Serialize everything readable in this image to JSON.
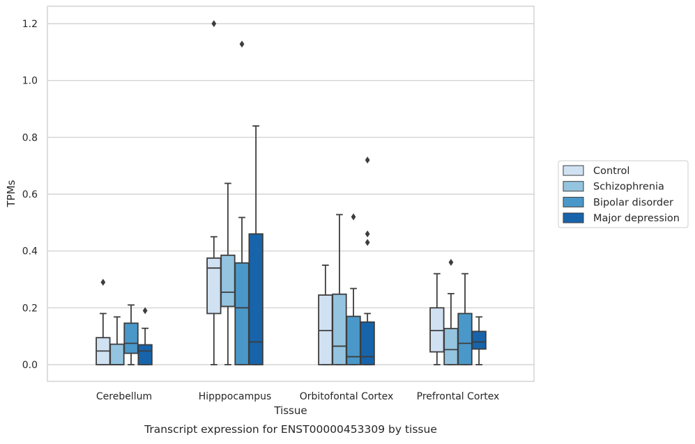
{
  "chart_data": {
    "type": "box",
    "title": "Transcript expression for ENST00000453309 by tissue",
    "xlabel": "Tissue",
    "ylabel": "TPMs",
    "ylim": [
      -0.06,
      1.26
    ],
    "yticks": [
      0.0,
      0.2,
      0.4,
      0.6,
      0.8,
      1.0,
      1.2
    ],
    "ytick_labels": [
      "0.0",
      "0.2",
      "0.4",
      "0.6",
      "0.8",
      "1.0",
      "1.2"
    ],
    "grid": true,
    "legend_placement": "right",
    "categories": [
      "Cerebellum",
      "Hipppocampus",
      "Orbitofontal Cortex",
      "Prefrontal Cortex"
    ],
    "series": [
      {
        "name": "Control",
        "color": "#d0e1f2",
        "boxes": [
          {
            "whislo": 0.0,
            "q1": 0.0,
            "med": 0.048,
            "q3": 0.095,
            "whishi": 0.18,
            "fliers": [
              0.29
            ]
          },
          {
            "whislo": 0.0,
            "q1": 0.18,
            "med": 0.34,
            "q3": 0.375,
            "whishi": 0.45,
            "fliers": [
              1.2
            ]
          },
          {
            "whislo": 0.0,
            "q1": 0.0,
            "med": 0.12,
            "q3": 0.245,
            "whishi": 0.35,
            "fliers": []
          },
          {
            "whislo": 0.0,
            "q1": 0.045,
            "med": 0.12,
            "q3": 0.2,
            "whishi": 0.32,
            "fliers": []
          }
        ]
      },
      {
        "name": "Schizophrenia",
        "color": "#94c4df",
        "boxes": [
          {
            "whislo": 0.0,
            "q1": 0.0,
            "med": 0.0,
            "q3": 0.072,
            "whishi": 0.168,
            "fliers": []
          },
          {
            "whislo": 0.0,
            "q1": 0.205,
            "med": 0.255,
            "q3": 0.385,
            "whishi": 0.638,
            "fliers": []
          },
          {
            "whislo": 0.0,
            "q1": 0.0,
            "med": 0.065,
            "q3": 0.248,
            "whishi": 0.528,
            "fliers": []
          },
          {
            "whislo": 0.0,
            "q1": 0.0,
            "med": 0.053,
            "q3": 0.127,
            "whishi": 0.25,
            "fliers": [
              0.36
            ]
          }
        ]
      },
      {
        "name": "Bipolar disorder",
        "color": "#4a98c9",
        "boxes": [
          {
            "whislo": 0.0,
            "q1": 0.04,
            "med": 0.075,
            "q3": 0.146,
            "whishi": 0.21,
            "fliers": []
          },
          {
            "whislo": 0.0,
            "q1": 0.0,
            "med": 0.2,
            "q3": 0.358,
            "whishi": 0.518,
            "fliers": [
              1.128
            ]
          },
          {
            "whislo": 0.0,
            "q1": 0.0,
            "med": 0.028,
            "q3": 0.17,
            "whishi": 0.268,
            "fliers": [
              0.52
            ]
          },
          {
            "whislo": 0.0,
            "q1": 0.0,
            "med": 0.075,
            "q3": 0.18,
            "whishi": 0.32,
            "fliers": []
          }
        ]
      },
      {
        "name": "Major depression",
        "color": "#1764ab",
        "boxes": [
          {
            "whislo": 0.0,
            "q1": 0.0,
            "med": 0.048,
            "q3": 0.07,
            "whishi": 0.128,
            "fliers": [
              0.19
            ]
          },
          {
            "whislo": 0.0,
            "q1": 0.0,
            "med": 0.08,
            "q3": 0.46,
            "whishi": 0.84,
            "fliers": []
          },
          {
            "whislo": 0.0,
            "q1": 0.0,
            "med": 0.028,
            "q3": 0.15,
            "whishi": 0.18,
            "fliers": [
              0.72,
              0.46,
              0.43
            ]
          },
          {
            "whislo": 0.0,
            "q1": 0.055,
            "med": 0.08,
            "q3": 0.117,
            "whishi": 0.168,
            "fliers": []
          }
        ]
      }
    ]
  }
}
